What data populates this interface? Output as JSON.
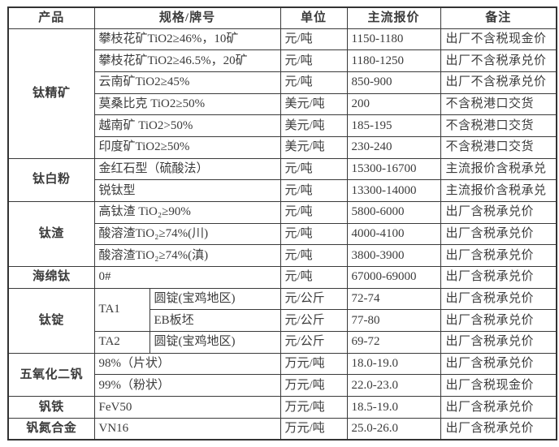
{
  "table": {
    "headers": {
      "product": "产品",
      "spec": "规格/牌号",
      "unit": "单位",
      "price": "主流报价",
      "note": "备注"
    },
    "groups": [
      {
        "product": "钛精矿",
        "rows": [
          {
            "spec": "攀枝花矿TiO2≥46%，10矿",
            "unit": "元/吨",
            "price": "1150-1180",
            "note": "出厂不含税现金价"
          },
          {
            "spec": "攀枝花矿TiO2≥46.5%，20矿",
            "unit": "元/吨",
            "price": "1180-1250",
            "note": "出厂不含税承兑价"
          },
          {
            "spec": "云南矿TiO2≥45%",
            "unit": "元/吨",
            "price": "850-900",
            "note": "出厂不含税承兑价"
          },
          {
            "spec": "莫桑比克 TiO2≥50%",
            "unit": "美元/吨",
            "price": "200",
            "note": "不含税港口交货"
          },
          {
            "spec": "越南矿 TiO2>50%",
            "unit": "美元/吨",
            "price": "185-195",
            "note": "不含税港口交货"
          },
          {
            "spec": "印度矿TiO2≥50%",
            "unit": "美元/吨",
            "price": "230-240",
            "note": "不含税港口交货"
          }
        ]
      },
      {
        "product": "钛白粉",
        "rows": [
          {
            "spec": "金红石型（硫酸法）",
            "unit": "元/吨",
            "price": "15300-16700",
            "note": "主流报价含税承兑"
          },
          {
            "spec": "锐钛型",
            "unit": "元/吨",
            "price": "13300-14000",
            "note": "主流报价含税承兑"
          }
        ]
      },
      {
        "product": "钛渣",
        "rows": [
          {
            "spec": "高钛渣 TiO₂≥90%",
            "unit": "元/吨",
            "price": "5800-6000",
            "note": "出厂含税承兑价"
          },
          {
            "spec": "酸溶渣TiO₂≥74%(川)",
            "unit": "元/吨",
            "price": "4000-4100",
            "note": "出厂含税承兑价"
          },
          {
            "spec": "酸溶渣TiO₂≥74%(滇)",
            "unit": "元/吨",
            "price": "3800-3900",
            "note": "出厂含税承兑价"
          }
        ]
      },
      {
        "product": "海绵钛",
        "rows": [
          {
            "spec": "0#",
            "unit": "元/吨",
            "price": "67000-69000",
            "note": "出厂含税承兑价"
          }
        ]
      },
      {
        "product": "钛锭",
        "hasGrades": true,
        "rows": [
          {
            "grade": "TA1",
            "gradeSpan": 2,
            "spec": "圆锭(宝鸡地区)",
            "unit": "元/公斤",
            "price": "72-74",
            "note": "出厂含税承兑价"
          },
          {
            "spec": "EB板坯",
            "unit": "元/公斤",
            "price": "77-80",
            "note": "出厂含税承兑价"
          },
          {
            "grade": "TA2",
            "gradeSpan": 1,
            "spec": "圆锭(宝鸡地区)",
            "unit": "元/公斤",
            "price": "69-72",
            "note": "出厂含税承兑价"
          }
        ]
      },
      {
        "product": "五氧化二钒",
        "rows": [
          {
            "spec": "98%（片状）",
            "unit": "万元/吨",
            "price": "18.0-19.0",
            "note": "出厂含税承兑价"
          },
          {
            "spec": "99%（粉状）",
            "unit": "万元/吨",
            "price": "22.0-23.0",
            "note": "出厂含税现金价"
          }
        ]
      },
      {
        "product": "钒铁",
        "rows": [
          {
            "spec": "FeV50",
            "unit": "万元/吨",
            "price": "18.5-19.0",
            "note": "出厂含税承兑价"
          }
        ]
      },
      {
        "product": "钒氮合金",
        "rows": [
          {
            "spec": "VN16",
            "unit": "万元/吨",
            "price": "25.0-26.0",
            "note": "出厂含税承兑价"
          }
        ]
      }
    ]
  }
}
